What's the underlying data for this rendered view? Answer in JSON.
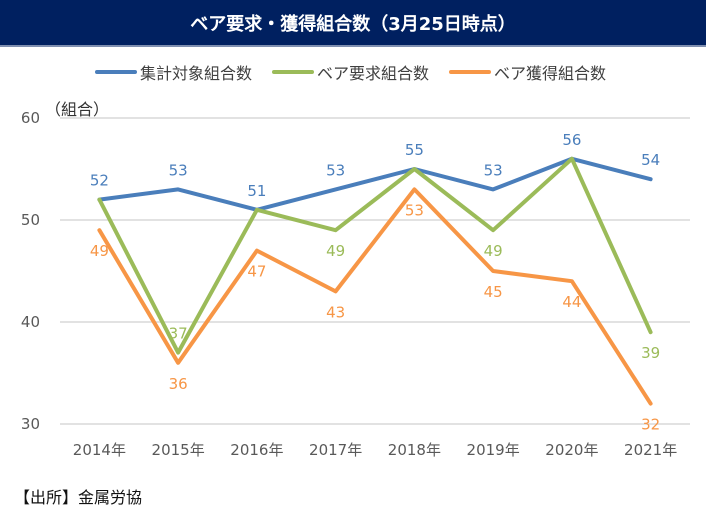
{
  "title": "ベア要求・獲得組合数（3月25日時点）",
  "unit_label": "（組合）",
  "source": "【出所】金属労協",
  "chart_data": {
    "type": "line",
    "title": "ベア要求・獲得組合数（3月25日時点）",
    "xlabel": "",
    "ylabel": "（組合）",
    "ylim": [
      30,
      60
    ],
    "yticks": [
      30,
      40,
      50,
      60
    ],
    "grid": true,
    "legend_position": "top",
    "categories": [
      "2014年",
      "2015年",
      "2016年",
      "2017年",
      "2018年",
      "2019年",
      "2020年",
      "2021年"
    ],
    "series": [
      {
        "name": "集計対象組合数",
        "color": "#4a7ebb",
        "values": [
          52,
          53,
          51,
          53,
          55,
          53,
          56,
          54
        ],
        "label_pos": [
          "above",
          "above",
          "above",
          "above",
          "above",
          "above",
          "above",
          "above"
        ]
      },
      {
        "name": "ベア要求組合数",
        "color": "#9bbb59",
        "values": [
          52,
          37,
          51,
          49,
          55,
          49,
          56,
          39
        ],
        "label_pos": [
          "none",
          "above",
          "none",
          "below",
          "none",
          "below",
          "none",
          "below"
        ]
      },
      {
        "name": "ベア獲得組合数",
        "color": "#f79646",
        "values": [
          49,
          36,
          47,
          43,
          53,
          45,
          44,
          32
        ],
        "label_pos": [
          "below",
          "below",
          "below",
          "below",
          "below",
          "below",
          "below",
          "below"
        ]
      }
    ]
  }
}
